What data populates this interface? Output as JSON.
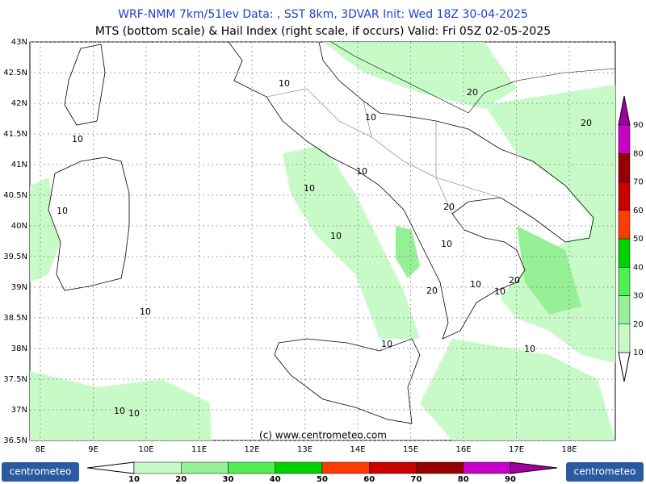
{
  "header": {
    "line1": "WRF-NMM 7km/51lev  Data: , SST 8km, 3DVAR   Init: Wed 18Z 30-04-2025",
    "line2": "MTS (bottom scale) & Hail Index (right scale, if occurs) Valid: Fri 05Z 02-05-2025"
  },
  "map": {
    "lat_ticks": [
      {
        "value": 43,
        "label": "43N"
      },
      {
        "value": 42.5,
        "label": "42.5N"
      },
      {
        "value": 42,
        "label": "42N"
      },
      {
        "value": 41.5,
        "label": "41.5N"
      },
      {
        "value": 41,
        "label": "41N"
      },
      {
        "value": 40.5,
        "label": "40.5N"
      },
      {
        "value": 40,
        "label": "40N"
      },
      {
        "value": 39.5,
        "label": "39.5N"
      },
      {
        "value": 39,
        "label": "39N"
      },
      {
        "value": 38.5,
        "label": "38.5N"
      },
      {
        "value": 38,
        "label": "38N"
      },
      {
        "value": 37.5,
        "label": "37.5N"
      },
      {
        "value": 37,
        "label": "37N"
      },
      {
        "value": 36.5,
        "label": "36.5N"
      }
    ],
    "lon_ticks": [
      {
        "value": 8,
        "label": "8E"
      },
      {
        "value": 9,
        "label": "9E"
      },
      {
        "value": 10,
        "label": "10E"
      },
      {
        "value": 11,
        "label": "11E"
      },
      {
        "value": 12,
        "label": "12E"
      },
      {
        "value": 13,
        "label": "13E"
      },
      {
        "value": 14,
        "label": "14E"
      },
      {
        "value": 15,
        "label": "15E"
      },
      {
        "value": 16,
        "label": "16E"
      },
      {
        "value": 17,
        "label": "17E"
      },
      {
        "value": 18,
        "label": "18E"
      }
    ],
    "contour_labels": [
      10,
      20,
      10,
      20,
      10,
      10,
      10,
      10,
      20,
      10,
      10,
      20,
      10,
      20,
      10,
      10,
      10,
      10,
      10,
      10
    ],
    "copyright": "(c) www.centrometeo.com"
  },
  "hail_scale": {
    "labels": [
      10,
      20,
      30,
      40,
      50,
      60,
      70,
      80,
      90
    ],
    "colors": [
      "#ffffff",
      "#c8fac8",
      "#96f096",
      "#50f050",
      "#00d200",
      "#ff3c00",
      "#c80000",
      "#960000",
      "#c800c8",
      "#a000a0"
    ]
  },
  "mts_scale": {
    "labels": [
      10,
      20,
      30,
      40,
      50,
      60,
      70,
      80,
      90
    ],
    "colors": [
      "#ffffff",
      "#c8fac8",
      "#96f096",
      "#50f050",
      "#00d200",
      "#ff3c00",
      "#c80000",
      "#960000",
      "#c800c8",
      "#a000a0"
    ]
  },
  "logo": "centrometeo"
}
